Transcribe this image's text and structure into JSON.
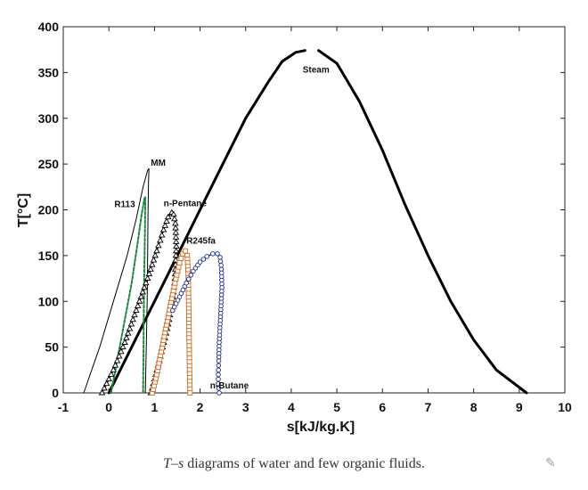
{
  "caption": {
    "symbol_T": "T",
    "dash": "–",
    "symbol_s": "s",
    "text": " diagrams of water and few organic fluids."
  },
  "chart_data": {
    "type": "line",
    "title": "",
    "xlabel": "s[kJ/kg.K]",
    "ylabel": "T[°C]",
    "xlim": [
      -1,
      10
    ],
    "ylim": [
      0,
      400
    ],
    "xticks": [
      -1,
      0,
      1,
      2,
      3,
      4,
      5,
      6,
      7,
      8,
      9,
      10
    ],
    "yticks": [
      0,
      50,
      100,
      150,
      200,
      250,
      300,
      350,
      400
    ],
    "grid": false,
    "series": [
      {
        "name": "Steam",
        "color": "#000000",
        "marker": "none",
        "width": 3,
        "segments": [
          {
            "x": [
              0.0,
              0.5,
              1.0,
              1.5,
              2.0,
              2.5,
              3.0,
              3.5,
              3.8,
              4.1,
              4.3
            ],
            "y": [
              0,
              50,
              100,
              150,
              200,
              250,
              300,
              340,
              362,
              372,
              374
            ]
          },
          {
            "x": [
              4.6,
              5.0,
              5.5,
              6.0,
              6.5,
              7.0,
              7.5,
              8.0,
              8.5,
              9.16
            ],
            "y": [
              374,
              360,
              318,
              265,
              205,
              150,
              100,
              58,
              25,
              0
            ]
          }
        ]
      },
      {
        "name": "MM",
        "color": "#000000",
        "marker": "none",
        "width": 1,
        "segments": [
          {
            "x": [
              -0.55,
              -0.2,
              0.1,
              0.4,
              0.6,
              0.75,
              0.85,
              0.88,
              0.87,
              0.86,
              0.85,
              0.84,
              0.82,
              0.8
            ],
            "y": [
              0,
              50,
              100,
              150,
              190,
              225,
              243,
              245,
              230,
              200,
              150,
              100,
              50,
              0
            ]
          }
        ]
      },
      {
        "name": "R113",
        "color": "#1a8a3a",
        "marker": "dot",
        "width": 2,
        "segments": [
          {
            "x": [
              0.05,
              0.2,
              0.35,
              0.5,
              0.62,
              0.72,
              0.78,
              0.8,
              0.79,
              0.77,
              0.76,
              0.75
            ],
            "y": [
              0,
              40,
              80,
              120,
              160,
              195,
              212,
              214,
              170,
              110,
              50,
              0
            ]
          }
        ]
      },
      {
        "name": "n-Pentane",
        "color": "#000000",
        "marker": "triangle",
        "width": 1.5,
        "segments": [
          {
            "x": [
              -0.15,
              0.1,
              0.35,
              0.6,
              0.85,
              1.05,
              1.2,
              1.3,
              1.38,
              1.42,
              1.46,
              1.48,
              1.45,
              1.38,
              1.28,
              1.18,
              1.08,
              1.0,
              0.95,
              0.92
            ],
            "y": [
              0,
              25,
              55,
              90,
              125,
              155,
              178,
              192,
              197,
              195,
              185,
              160,
              125,
              95,
              70,
              50,
              30,
              15,
              5,
              0
            ]
          }
        ]
      },
      {
        "name": "R245fa",
        "color": "#d2691e",
        "marker": "square",
        "width": 1.5,
        "segments": [
          {
            "x": [
              0.95,
              1.05,
              1.15,
              1.25,
              1.35,
              1.45,
              1.55,
              1.62,
              1.68,
              1.72,
              1.74,
              1.75,
              1.76,
              1.77,
              1.78
            ],
            "y": [
              0,
              20,
              45,
              70,
              95,
              120,
              142,
              152,
              155,
              150,
              130,
              100,
              60,
              25,
              0
            ]
          }
        ]
      },
      {
        "name": "n-Butane",
        "color": "#1a2f8a",
        "marker": "circle",
        "width": 1.5,
        "segments": [
          {
            "x": [
              1.4,
              1.55,
              1.7,
              1.85,
              2.0,
              2.15,
              2.28,
              2.38,
              2.44,
              2.47,
              2.48,
              2.46,
              2.44,
              2.42,
              2.41,
              2.4,
              2.4,
              2.42
            ],
            "y": [
              90,
              105,
              120,
              133,
              143,
              149,
              152,
              152,
              148,
              135,
              115,
              95,
              75,
              55,
              35,
              20,
              10,
              0
            ]
          }
        ]
      }
    ],
    "annotations": [
      {
        "text": "Steam",
        "x": 4.25,
        "y": 350
      },
      {
        "text": "MM",
        "x": 0.92,
        "y": 248
      },
      {
        "text": "R113",
        "x": 0.12,
        "y": 203
      },
      {
        "text": "n-Pentane",
        "x": 1.2,
        "y": 204
      },
      {
        "text": "R245fa",
        "x": 1.7,
        "y": 163
      },
      {
        "text": "n-Butane",
        "x": 2.22,
        "y": 5
      }
    ]
  }
}
